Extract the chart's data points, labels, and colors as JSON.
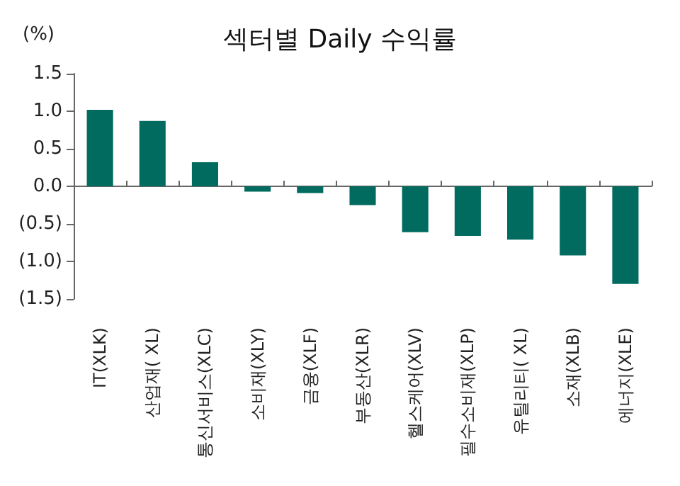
{
  "chart_data": {
    "type": "bar",
    "title": "섹터별 Daily 수익률",
    "ylabel": "(%)",
    "categories": [
      "IT(XLK)",
      "산업재( XL)",
      "통신서비스(XLC)",
      "소비재(XLY)",
      "금융(XLF)",
      "부동산(XLR)",
      "헬스케어(XLV)",
      "필수소비재(XLP)",
      "유틸리티( XL)",
      "소재(XLB)",
      "에너지(XLE)"
    ],
    "values": [
      1.02,
      0.87,
      0.32,
      -0.07,
      -0.09,
      -0.25,
      -0.61,
      -0.66,
      -0.71,
      -0.92,
      -1.3
    ],
    "color": "#006b5e",
    "ylim": [
      -1.5,
      1.5
    ],
    "yticks": [
      {
        "value": -1.5,
        "label": "(1.5)"
      },
      {
        "value": -1.0,
        "label": "(1.0)"
      },
      {
        "value": -0.5,
        "label": "(0.5)"
      },
      {
        "value": 0,
        "label": "0.0"
      },
      {
        "value": 0.5,
        "label": "0.5"
      },
      {
        "value": 1.0,
        "label": "1.0"
      },
      {
        "value": 1.5,
        "label": "1.5"
      }
    ],
    "tick_labels": true
  }
}
